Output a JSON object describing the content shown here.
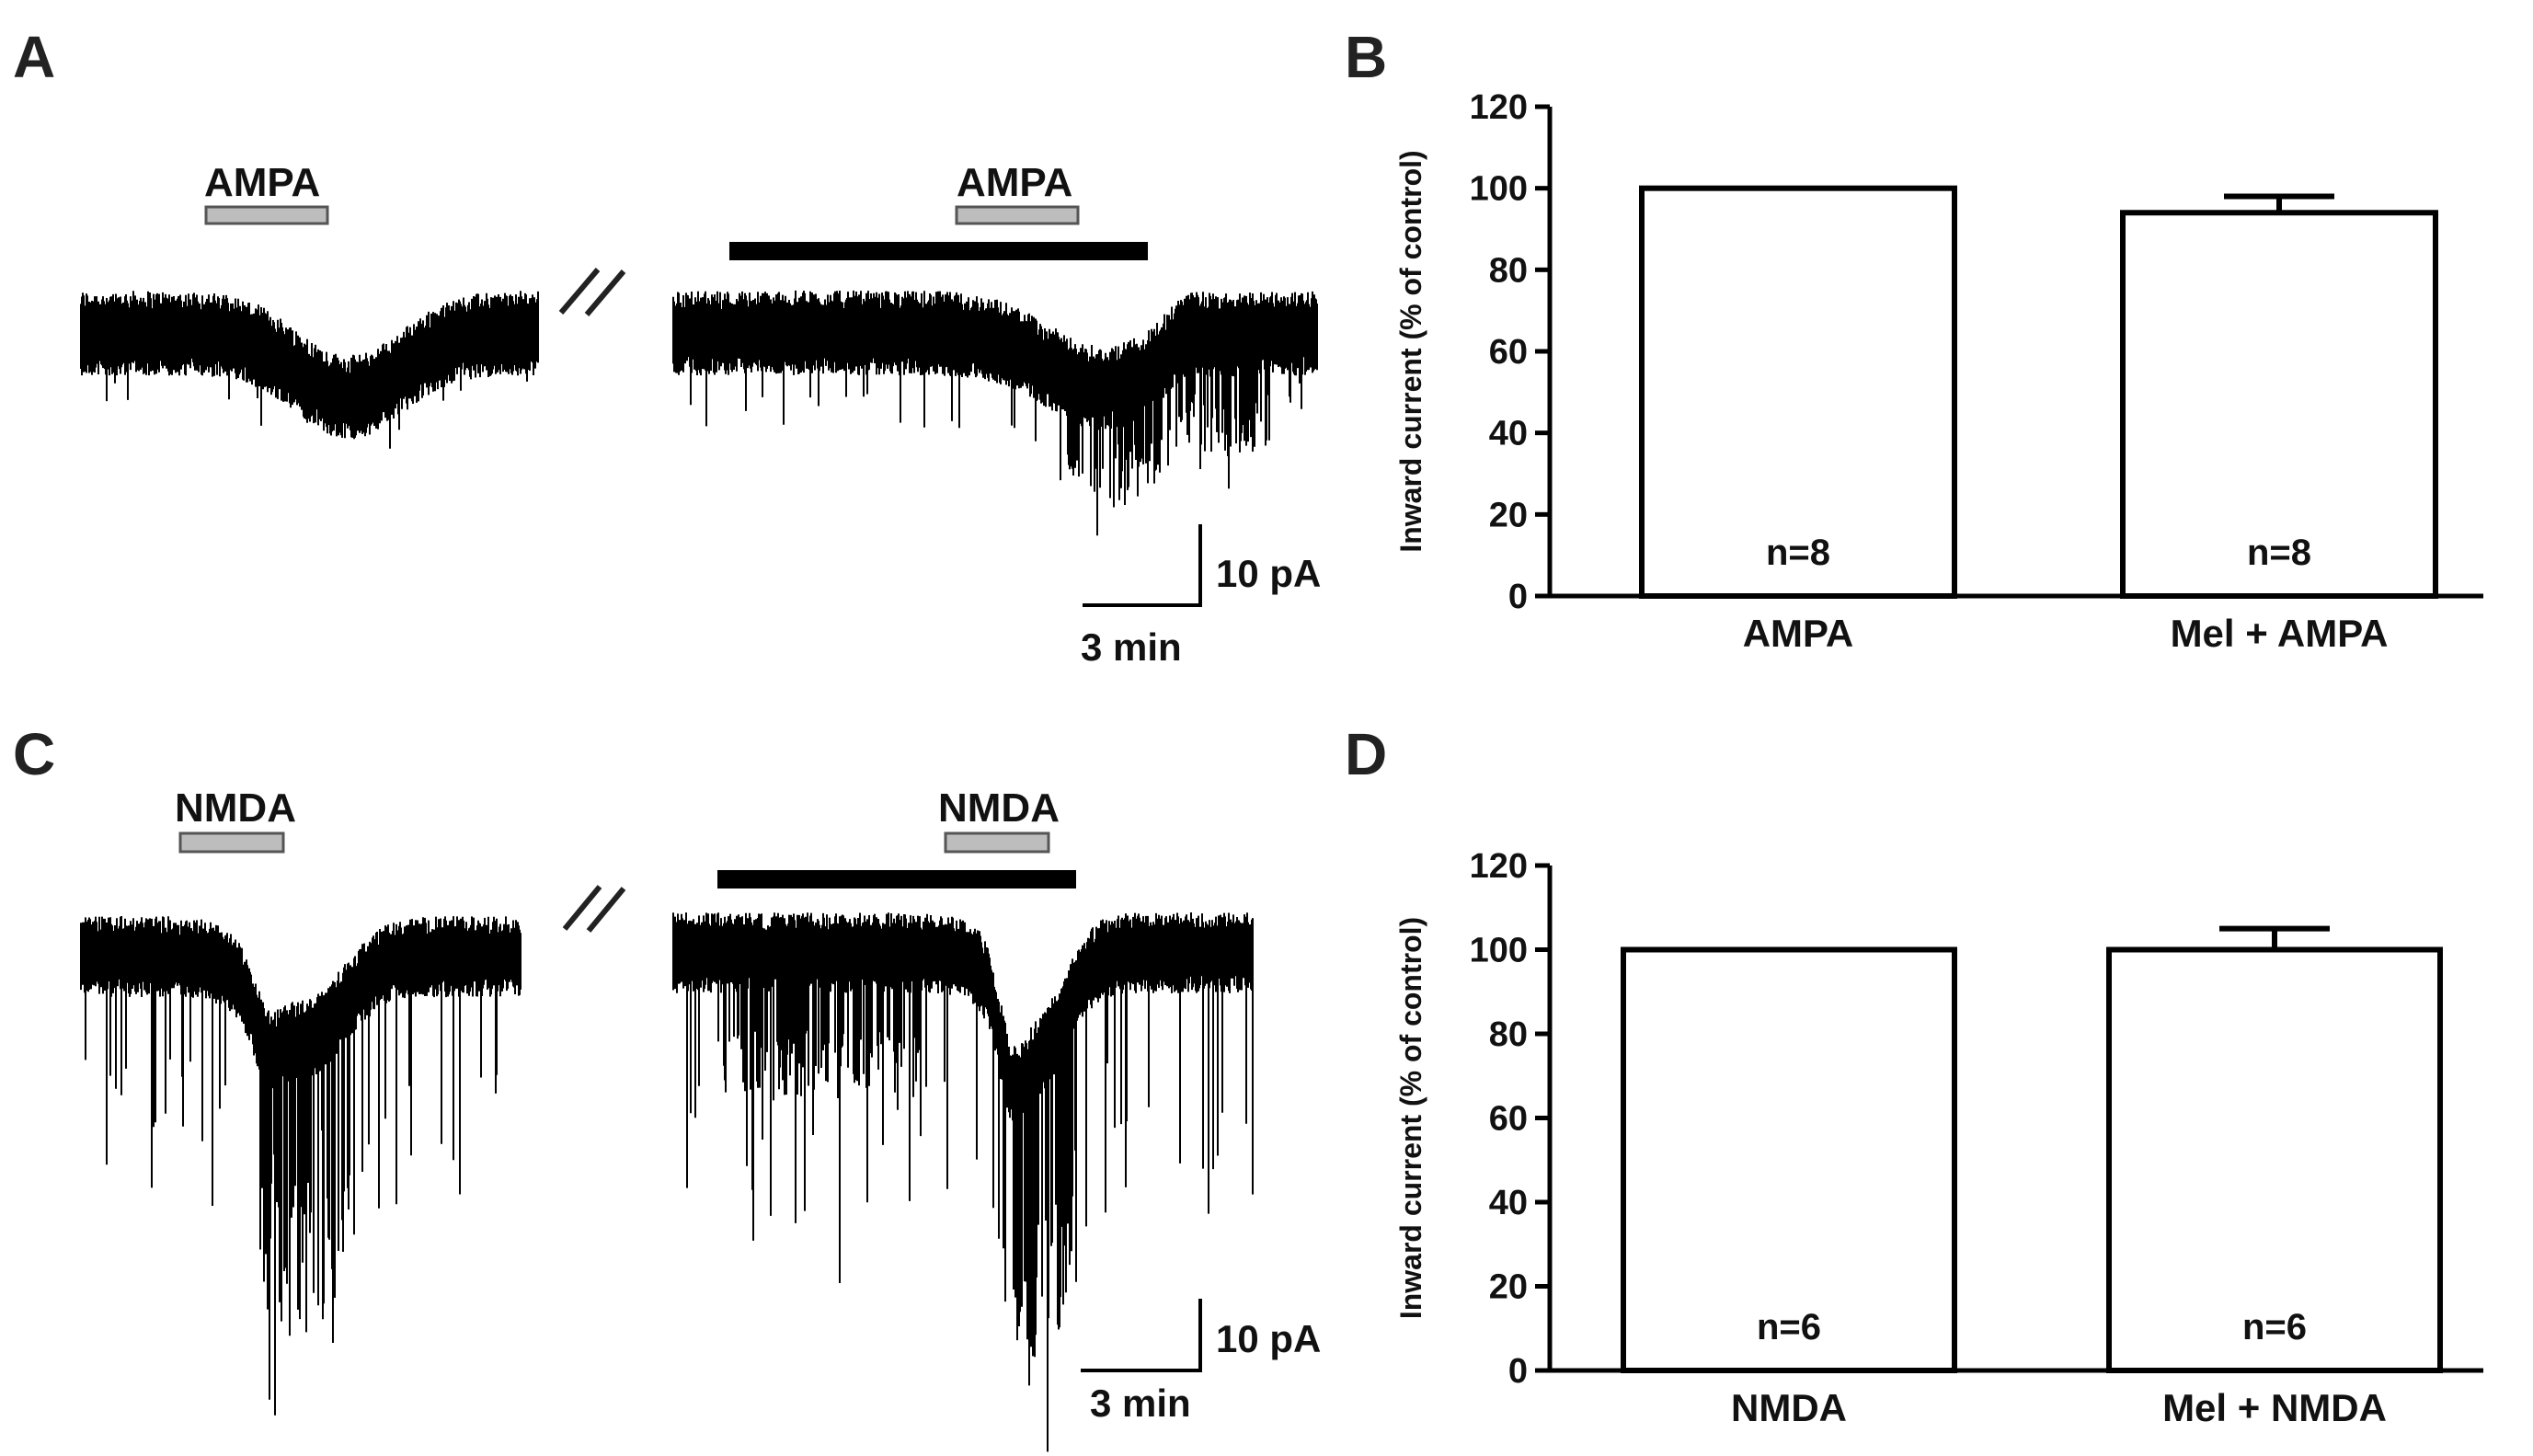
{
  "panels": {
    "A": {
      "letter": "A",
      "traces": [
        {
          "drug_label": "AMPA",
          "trace_key": "ampa_control"
        },
        {
          "drug_label": "AMPA",
          "trace_key": "ampa_mel"
        }
      ],
      "break_mark": "//",
      "scale_bar": {
        "current": "10 pA",
        "time": "3 min"
      }
    },
    "B": {
      "letter": "B"
    },
    "C": {
      "letter": "C",
      "traces": [
        {
          "drug_label": "NMDA",
          "trace_key": "nmda_control"
        },
        {
          "drug_label": "NMDA",
          "trace_key": "nmda_mel"
        }
      ],
      "break_mark": "//",
      "scale_bar": {
        "current": "10 pA",
        "time": "3 min"
      }
    },
    "D": {
      "letter": "D"
    }
  },
  "colors": {
    "trace": "#000000",
    "drug_bar_fill": "#bdbdbd",
    "melatonin_bar": "#000000",
    "bar_fill": "#ffffff",
    "axis": "#000000"
  },
  "chart_data": [
    {
      "panel": "B",
      "type": "bar",
      "categories": [
        "AMPA",
        "Mel + AMPA"
      ],
      "values": [
        100,
        94
      ],
      "errors": [
        0,
        4
      ],
      "n_labels": [
        "n=8",
        "n=8"
      ],
      "ylabel": "Inward current (% of control)",
      "xlabel": "",
      "ylim": [
        0,
        120
      ],
      "yticks": [
        0,
        20,
        40,
        60,
        80,
        100,
        120
      ],
      "grid": false
    },
    {
      "panel": "D",
      "type": "bar",
      "categories": [
        "NMDA",
        "Mel + NMDA"
      ],
      "values": [
        100,
        100
      ],
      "errors": [
        0,
        5
      ],
      "n_labels": [
        "n=6",
        "n=6"
      ],
      "ylabel": "Inward current (% of control)",
      "xlabel": "",
      "ylim": [
        0,
        120
      ],
      "yticks": [
        0,
        20,
        40,
        60,
        80,
        100,
        120
      ],
      "grid": false
    }
  ]
}
